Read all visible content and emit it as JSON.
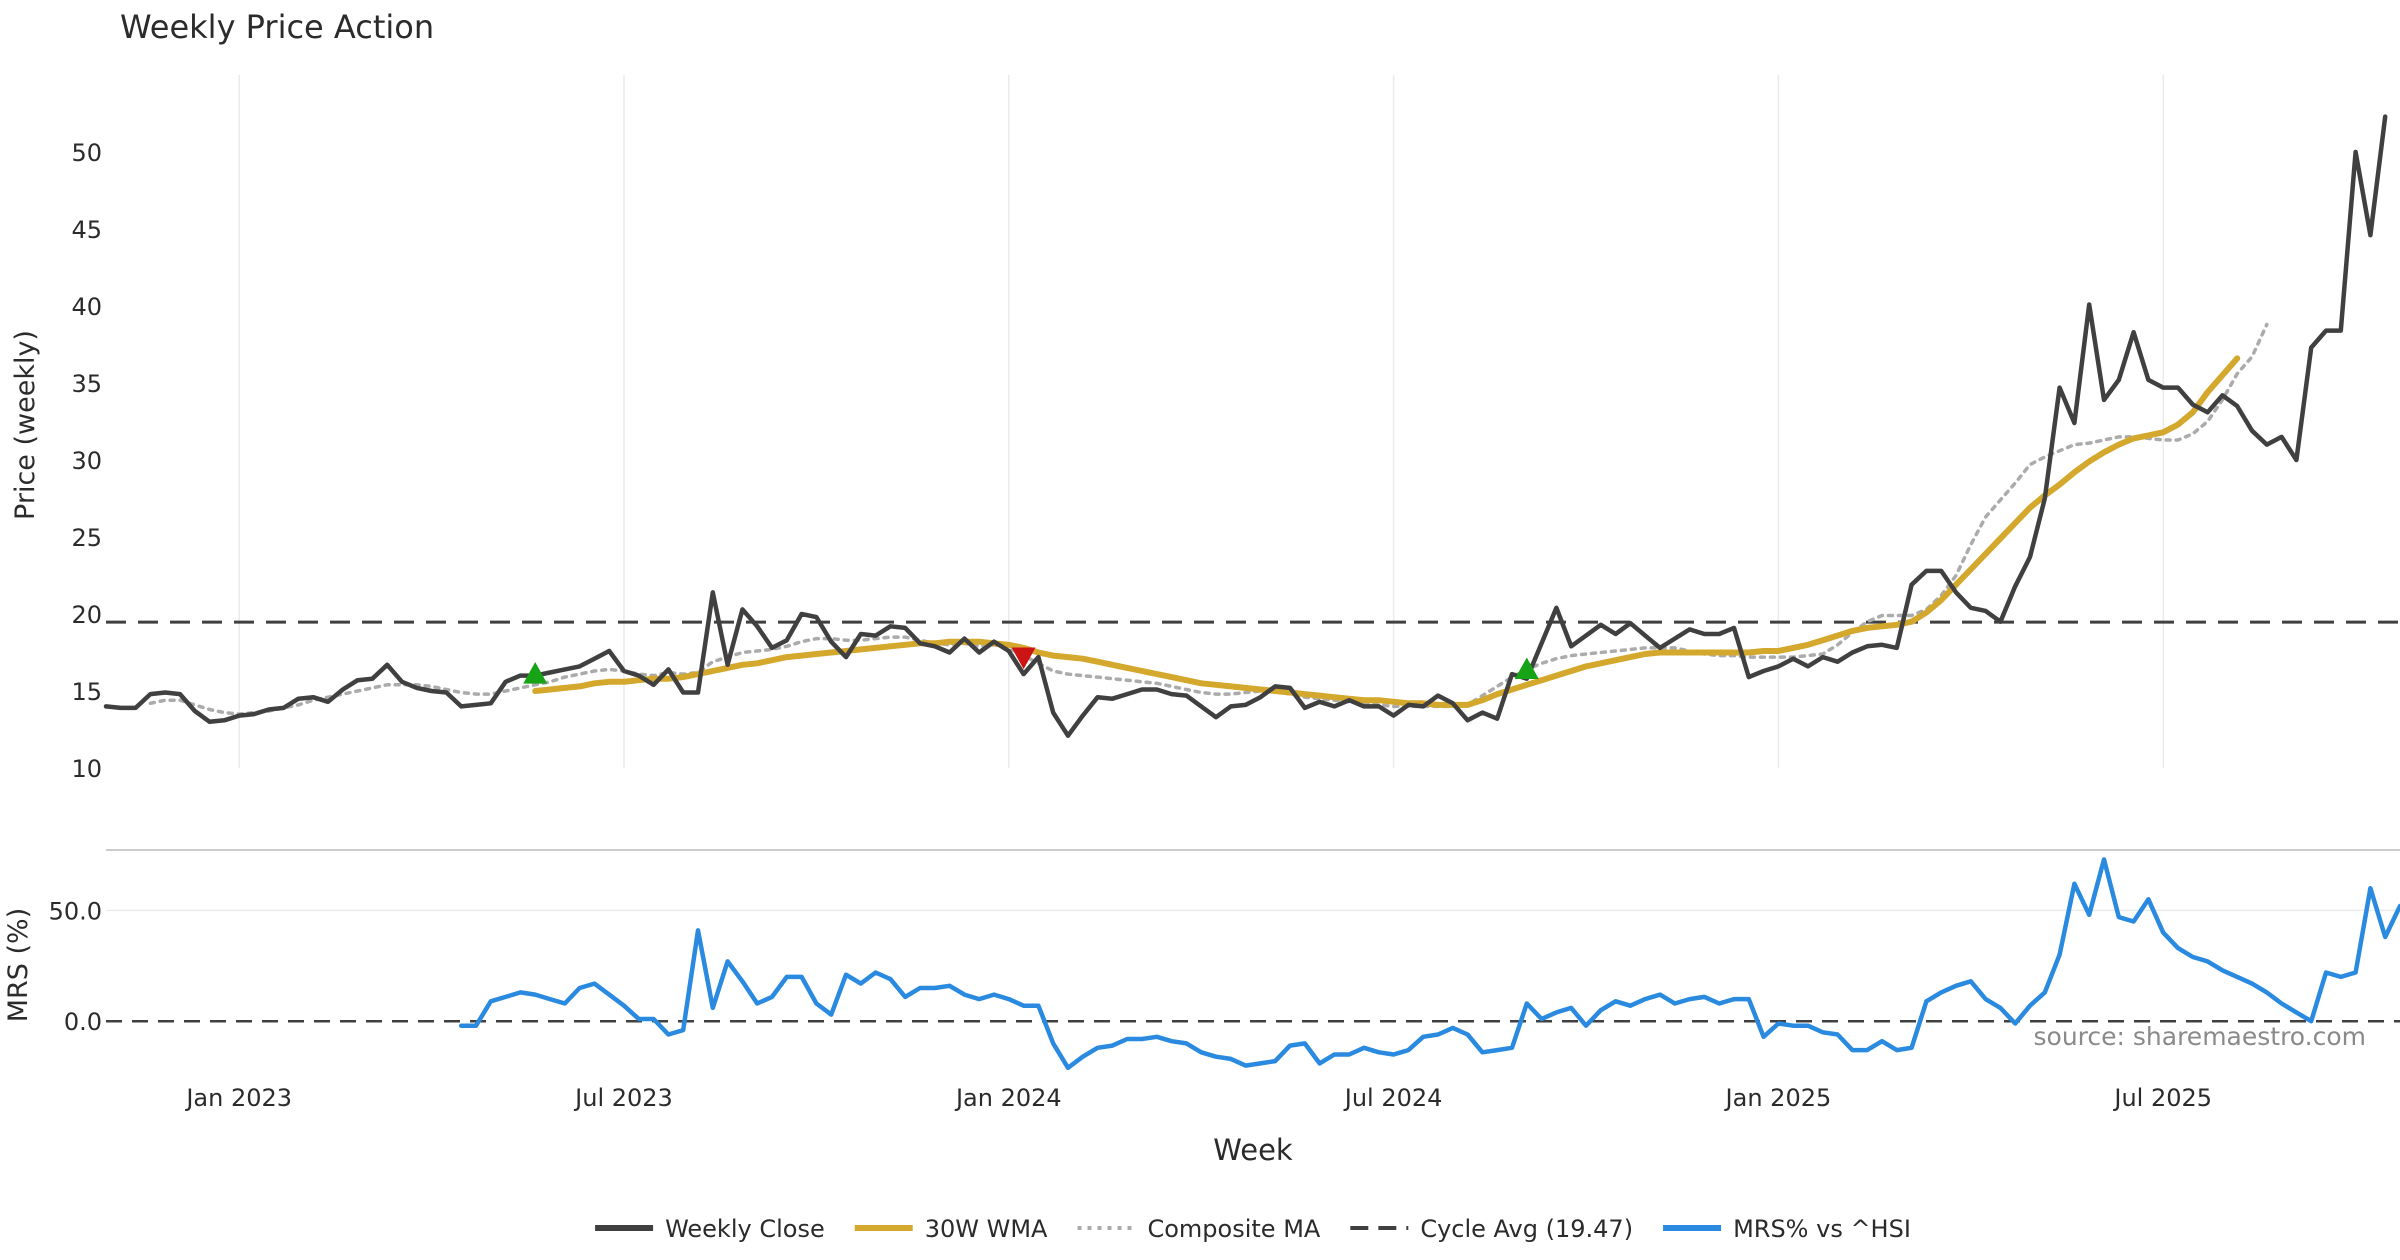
{
  "chart_data": {
    "type": "line",
    "title": "Weekly Price Action",
    "source_note": "source: sharemaestro.com",
    "xlabel": "Week",
    "x_ticks": [
      "Jan 2023",
      "Jul 2023",
      "Jan 2024",
      "Jul 2024",
      "Jan 2025",
      "Jul 2025"
    ],
    "x_tick_index": [
      10,
      36,
      62,
      88,
      114,
      140
    ],
    "x_range": [
      1,
      156
    ],
    "price_panel": {
      "ylabel": "Price (weekly)",
      "ylim": [
        10,
        55
      ],
      "y_ticks": [
        "10",
        "15",
        "20",
        "25",
        "30",
        "35",
        "40",
        "45",
        "50"
      ],
      "y_tick_values": [
        10,
        15,
        20,
        25,
        30,
        35,
        40,
        45,
        50
      ],
      "cycle_avg": 19.47,
      "series": [
        {
          "name": "Weekly Close",
          "color": "#404040",
          "style": "solid",
          "values": [
            14.0,
            13.9,
            13.9,
            14.8,
            14.9,
            14.8,
            13.7,
            13.0,
            13.1,
            13.4,
            13.5,
            13.8,
            13.9,
            14.5,
            14.6,
            14.3,
            15.1,
            15.7,
            15.8,
            16.7,
            15.6,
            15.2,
            15.0,
            14.9,
            14.0,
            14.1,
            14.2,
            15.6,
            16.0,
            16.0,
            16.2,
            16.4,
            16.6,
            17.1,
            17.6,
            16.3,
            16.0,
            15.4,
            16.4,
            14.9,
            14.9,
            21.4,
            16.7,
            20.3,
            19.2,
            17.8,
            18.3,
            20.0,
            19.8,
            18.2,
            17.2,
            18.7,
            18.6,
            19.2,
            19.1,
            18.1,
            17.9,
            17.5,
            18.4,
            17.5,
            18.2,
            17.6,
            16.1,
            17.2,
            13.6,
            12.1,
            13.4,
            14.6,
            14.5,
            14.8,
            15.1,
            15.1,
            14.8,
            14.7,
            14.0,
            13.3,
            14.0,
            14.1,
            14.6,
            15.3,
            15.2,
            13.9,
            14.3,
            14.0,
            14.4,
            14.0,
            14.0,
            13.4,
            14.1,
            14.0,
            14.7,
            14.2,
            13.1,
            13.6,
            13.2,
            16.1,
            15.8,
            18.1,
            20.4,
            17.9,
            18.6,
            19.3,
            18.7,
            19.4,
            18.6,
            17.8,
            18.4,
            19.0,
            18.7,
            18.7,
            19.1,
            15.9,
            16.3,
            16.6,
            17.1,
            16.6,
            17.2,
            16.9,
            17.5,
            17.9,
            18.0,
            17.8,
            21.9,
            22.8,
            22.8,
            21.4,
            20.4,
            20.2,
            19.5,
            21.8,
            23.7,
            27.5,
            34.7,
            32.4,
            40.1,
            33.9,
            35.2,
            38.3,
            35.2,
            34.7,
            34.7,
            33.6,
            33.1,
            34.2,
            33.5,
            31.9,
            31.0,
            31.5,
            30.0,
            37.3,
            38.4,
            38.4,
            50.0,
            44.6,
            52.3
          ]
        },
        {
          "name": "30W WMA",
          "color": "#d4a82c",
          "style": "solid",
          "values": [
            null,
            null,
            null,
            null,
            null,
            null,
            null,
            null,
            null,
            null,
            null,
            null,
            null,
            null,
            null,
            null,
            null,
            null,
            null,
            null,
            null,
            null,
            null,
            null,
            null,
            null,
            null,
            null,
            null,
            15.0,
            15.1,
            15.2,
            15.3,
            15.5,
            15.6,
            15.6,
            15.7,
            15.8,
            15.8,
            15.9,
            16.1,
            16.3,
            16.5,
            16.7,
            16.8,
            17.0,
            17.2,
            17.3,
            17.4,
            17.5,
            17.6,
            17.7,
            17.8,
            17.9,
            18.0,
            18.1,
            18.1,
            18.2,
            18.2,
            18.2,
            18.1,
            18.0,
            17.8,
            17.5,
            17.3,
            17.2,
            17.1,
            16.9,
            16.7,
            16.5,
            16.3,
            16.1,
            15.9,
            15.7,
            15.5,
            15.4,
            15.3,
            15.2,
            15.1,
            15.0,
            14.9,
            14.8,
            14.7,
            14.6,
            14.5,
            14.4,
            14.4,
            14.3,
            14.2,
            14.2,
            14.1,
            14.1,
            14.1,
            14.4,
            14.8,
            15.1,
            15.4,
            15.7,
            16.0,
            16.3,
            16.6,
            16.8,
            17.0,
            17.2,
            17.4,
            17.5,
            17.5,
            17.5,
            17.5,
            17.5,
            17.5,
            17.5,
            17.6,
            17.6,
            17.8,
            18.0,
            18.3,
            18.6,
            18.9,
            19.1,
            19.2,
            19.3,
            19.5,
            20.1,
            20.9,
            21.9,
            22.9,
            23.9,
            24.9,
            25.9,
            26.9,
            27.7,
            28.4,
            29.2,
            29.9,
            30.5,
            31.0,
            31.4,
            31.6,
            31.8,
            32.3,
            33.1,
            34.4,
            35.5,
            36.6
          ]
        },
        {
          "name": "Composite MA",
          "color": "#ababab",
          "style": "dotted",
          "values": [
            null,
            null,
            null,
            14.2,
            14.4,
            14.4,
            14.1,
            13.8,
            13.6,
            13.5,
            13.6,
            13.7,
            13.9,
            14.1,
            14.4,
            14.6,
            14.8,
            15.0,
            15.2,
            15.4,
            15.4,
            15.4,
            15.3,
            15.1,
            14.9,
            14.8,
            14.8,
            15.0,
            15.2,
            15.4,
            15.6,
            15.9,
            16.1,
            16.3,
            16.4,
            16.3,
            16.1,
            16.0,
            16.2,
            16.1,
            16.2,
            16.9,
            17.2,
            17.5,
            17.6,
            17.7,
            17.9,
            18.2,
            18.4,
            18.4,
            18.3,
            18.3,
            18.4,
            18.5,
            18.5,
            18.3,
            18.1,
            18.0,
            18.1,
            17.9,
            18.0,
            17.8,
            17.3,
            16.8,
            16.3,
            16.1,
            16.0,
            15.9,
            15.8,
            15.7,
            15.6,
            15.5,
            15.3,
            15.1,
            14.9,
            14.8,
            14.8,
            14.9,
            15.0,
            15.0,
            14.8,
            14.6,
            14.5,
            14.4,
            14.3,
            14.2,
            14.1,
            14.0,
            14.0,
            14.0,
            14.0,
            14.0,
            14.1,
            14.7,
            15.3,
            15.9,
            16.4,
            16.8,
            17.1,
            17.3,
            17.4,
            17.5,
            17.6,
            17.7,
            17.8,
            17.8,
            17.8,
            17.6,
            17.4,
            17.3,
            17.3,
            17.2,
            17.2,
            17.2,
            17.2,
            17.3,
            17.4,
            18.0,
            18.8,
            19.5,
            19.9,
            19.9,
            19.9,
            20.3,
            21.2,
            22.5,
            24.5,
            26.3,
            27.4,
            28.5,
            29.7,
            30.2,
            30.6,
            31.0,
            31.1,
            31.3,
            31.5,
            31.5,
            31.4,
            31.3,
            31.3,
            31.7,
            32.5,
            33.9,
            35.6,
            36.7,
            38.8
          ]
        }
      ],
      "signals": [
        {
          "type": "buy",
          "index": 30,
          "value": 16.1,
          "color": "#16a316"
        },
        {
          "type": "sell",
          "index": 63,
          "value": 17.2,
          "color": "#cc1414"
        },
        {
          "type": "buy",
          "index": 97,
          "value": 16.4,
          "color": "#16a316"
        }
      ]
    },
    "mrs_panel": {
      "ylabel": "MRS (%)",
      "ylim": [
        -22,
        75
      ],
      "y_ticks": [
        "0.0",
        "50.0"
      ],
      "y_tick_values": [
        0,
        50
      ],
      "series": [
        {
          "name": "MRS% vs ^HSI",
          "color": "#2a8ae0",
          "values": [
            null,
            null,
            null,
            null,
            null,
            null,
            null,
            null,
            null,
            null,
            null,
            null,
            null,
            null,
            null,
            null,
            null,
            null,
            null,
            null,
            null,
            null,
            null,
            null,
            -2,
            -2,
            9,
            11,
            13,
            12,
            10,
            8,
            15,
            17,
            12,
            7,
            1,
            1,
            -6,
            -4,
            41,
            6,
            27,
            18,
            8,
            11,
            20,
            20,
            8,
            3,
            21,
            17,
            22,
            19,
            11,
            15,
            15,
            16,
            12,
            10,
            12,
            10,
            7,
            7,
            -10,
            -21,
            -16,
            -12,
            -11,
            -8,
            -8,
            -7,
            -9,
            -10,
            -14,
            -16,
            -17,
            -20,
            -19,
            -18,
            -11,
            -10,
            -19,
            -15,
            -15,
            -12,
            -14,
            -15,
            -13,
            -7,
            -6,
            -3,
            -6,
            -14,
            -13,
            -12,
            8,
            1,
            4,
            6,
            -2,
            5,
            9,
            7,
            10,
            12,
            8,
            10,
            11,
            8,
            10,
            10,
            -7,
            -1,
            -2,
            -2,
            -5,
            -6,
            -13,
            -13,
            -9,
            -13,
            -12,
            9,
            13,
            16,
            18,
            10,
            6,
            -1,
            7,
            13,
            30,
            62,
            48,
            73,
            47,
            45,
            55,
            40,
            33,
            29,
            27,
            23,
            20,
            17,
            13,
            8,
            4,
            0,
            22,
            20,
            22,
            60,
            38,
            52
          ]
        }
      ]
    },
    "legend": [
      {
        "label": "Weekly Close",
        "color": "#404040",
        "style": "solid"
      },
      {
        "label": "30W WMA",
        "color": "#d4a82c",
        "style": "solid"
      },
      {
        "label": "Composite MA",
        "color": "#ababab",
        "style": "dotted"
      },
      {
        "label": "Cycle Avg (19.47)",
        "color": "#404040",
        "style": "dashed"
      },
      {
        "label": "MRS% vs ^HSI",
        "color": "#2a8ae0",
        "style": "solid"
      }
    ],
    "legend_position": "bottom-center"
  }
}
